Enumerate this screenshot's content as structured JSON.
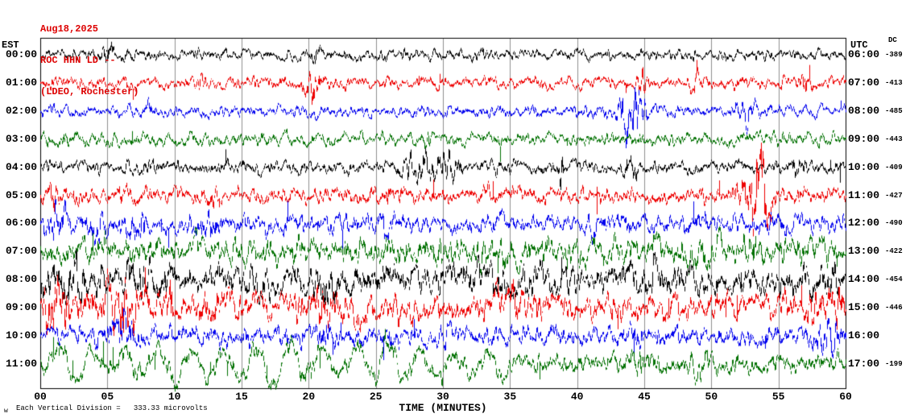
{
  "header": {
    "date": "Aug18,2025",
    "station": "ROC HHN LD --",
    "location": "(LDEO, Rochester)"
  },
  "axes": {
    "left_timezone": "EST",
    "right_timezone": "UTC",
    "dc_column_header": "DC",
    "x_axis_label": "TIME (MINUTES)",
    "x_ticks": [
      "00",
      "05",
      "10",
      "15",
      "20",
      "25",
      "30",
      "35",
      "40",
      "45",
      "50",
      "55",
      "60"
    ]
  },
  "footer": {
    "corner_mark": "w",
    "scale_note": "Each Vertical Division =   333.33 microvolts"
  },
  "colors": {
    "title_red": "#dd0000",
    "grid_gray": "#909090",
    "plot_border": "#000000",
    "background": "#ffffff"
  },
  "chart_data": {
    "type": "line",
    "description": "12-hour helicorder seismogram display, one 60-minute trace per row, colors cycling black/red/blue/green",
    "x_range_minutes": [
      0,
      60
    ],
    "x_tick_interval_minutes": 5,
    "vertical_division_microvolts": 333.33,
    "rows": [
      {
        "est": "00:00",
        "utc": "06:00",
        "dc": "-389",
        "color": "#000000",
        "amp": 4.8,
        "spike_p": 0.0012,
        "spike_a": 6,
        "bursts": [
          {
            "t": 5.0,
            "w": 0.25,
            "a": 10
          },
          {
            "t": 20.5,
            "w": 0.6,
            "a": 4
          },
          {
            "t": 33.0,
            "w": 0.5,
            "a": 3
          }
        ]
      },
      {
        "est": "01:00",
        "utc": "07:00",
        "dc": "-413",
        "color": "#ee0000",
        "amp": 5.0,
        "spike_p": 0.0015,
        "spike_a": 7,
        "bursts": [
          {
            "t": 20.3,
            "w": 0.5,
            "a": 14
          },
          {
            "t": 12.2,
            "w": 0.25,
            "a": 6
          },
          {
            "t": 44.8,
            "w": 0.3,
            "a": 8
          },
          {
            "t": 48.8,
            "w": 0.25,
            "a": 7
          },
          {
            "t": 57.0,
            "w": 0.3,
            "a": 5
          }
        ]
      },
      {
        "est": "02:00",
        "utc": "08:00",
        "dc": "-485",
        "color": "#0000ee",
        "amp": 5.0,
        "spike_p": 0.0015,
        "spike_a": 7,
        "bursts": [
          {
            "t": 44.2,
            "w": 0.55,
            "a": 27
          },
          {
            "t": 43.3,
            "w": 0.3,
            "a": 12
          },
          {
            "t": 52.4,
            "w": 0.5,
            "a": 9
          },
          {
            "t": 8.0,
            "w": 0.3,
            "a": 4
          }
        ]
      },
      {
        "est": "03:00",
        "utc": "09:00",
        "dc": "-443",
        "color": "#007000",
        "amp": 5.3,
        "spike_p": 0.0015,
        "spike_a": 6,
        "bursts": [
          {
            "t": 28.8,
            "w": 0.2,
            "a": 7
          },
          {
            "t": 2.0,
            "w": 0.4,
            "a": 4
          },
          {
            "t": 47.0,
            "w": 0.4,
            "a": 3
          }
        ]
      },
      {
        "est": "04:00",
        "utc": "10:00",
        "dc": "-409",
        "color": "#000000",
        "amp": 5.8,
        "spike_p": 0.002,
        "spike_a": 8,
        "bursts": [
          {
            "t": 28.6,
            "w": 0.9,
            "a": 12
          },
          {
            "t": 30.8,
            "w": 0.5,
            "a": 10
          },
          {
            "t": 38.8,
            "w": 0.15,
            "a": 18
          },
          {
            "t": 44.2,
            "w": 0.2,
            "a": 9
          },
          {
            "t": 56.2,
            "w": 0.3,
            "a": 6
          }
        ]
      },
      {
        "est": "05:00",
        "utc": "11:00",
        "dc": "-427",
        "color": "#ee0000",
        "amp": 6.8,
        "spike_p": 0.003,
        "spike_a": 9,
        "bursts": [
          {
            "t": 53.3,
            "w": 0.7,
            "a": 40
          },
          {
            "t": 0.8,
            "w": 0.5,
            "a": 8
          },
          {
            "t": 6.2,
            "w": 0.3,
            "a": 7
          },
          {
            "t": 12.4,
            "w": 0.3,
            "a": 8
          },
          {
            "t": 26.0,
            "w": 0.2,
            "a": 6
          },
          {
            "t": 33.0,
            "w": 0.2,
            "a": 5
          }
        ]
      },
      {
        "est": "06:00",
        "utc": "12:00",
        "dc": "-490",
        "color": "#0000ee",
        "amp": 8.2,
        "spike_p": 0.004,
        "spike_a": 10,
        "bursts": [
          {
            "t": 1.2,
            "w": 0.5,
            "a": 12
          },
          {
            "t": 4.2,
            "w": 0.4,
            "a": 9
          },
          {
            "t": 7.2,
            "w": 0.5,
            "a": 10
          },
          {
            "t": 12.3,
            "w": 0.6,
            "a": 9
          },
          {
            "t": 25.6,
            "w": 0.2,
            "a": 8
          },
          {
            "t": 41.0,
            "w": 0.3,
            "a": 6
          },
          {
            "t": 55.0,
            "w": 0.5,
            "a": 6
          }
        ]
      },
      {
        "est": "07:00",
        "utc": "13:00",
        "dc": "-422",
        "color": "#007000",
        "amp": 10.5,
        "wander": 3,
        "spike_p": 0.005,
        "spike_a": 9,
        "bursts": [
          {
            "t": 30.0,
            "w": 6.0,
            "a": 2.5
          },
          {
            "t": 50.0,
            "w": 4.0,
            "a": 3
          }
        ]
      },
      {
        "est": "08:00",
        "utc": "14:00",
        "dc": "-454",
        "color": "#000000",
        "amp": 12.0,
        "wander": 7,
        "spike_p": 0.004,
        "spike_a": 10,
        "bursts": [
          {
            "t": 2.0,
            "w": 1.5,
            "a": 9
          },
          {
            "t": 8.0,
            "w": 1.2,
            "a": 8
          },
          {
            "t": 22.0,
            "w": 2.5,
            "a": 5
          },
          {
            "t": 33.0,
            "w": 2.0,
            "a": 4
          },
          {
            "t": 47.0,
            "w": 2.0,
            "a": 4
          },
          {
            "t": 58.0,
            "w": 1.0,
            "a": 6
          }
        ]
      },
      {
        "est": "09:00",
        "utc": "15:00",
        "dc": "-446",
        "color": "#ee0000",
        "amp": 12.0,
        "wander": 5,
        "spike_p": 0.004,
        "spike_a": 10,
        "bursts": [
          {
            "t": 1.0,
            "w": 1.0,
            "a": 12
          },
          {
            "t": 6.5,
            "w": 1.3,
            "a": 11
          },
          {
            "t": 9.7,
            "w": 0.06,
            "a": 60
          },
          {
            "t": 13.0,
            "w": 0.8,
            "a": 8
          },
          {
            "t": 21.0,
            "w": 1.0,
            "a": 7
          },
          {
            "t": 35.0,
            "w": 1.5,
            "a": 5
          },
          {
            "t": 58.5,
            "w": 0.8,
            "a": 10
          }
        ]
      },
      {
        "est": "10:00",
        "utc": "16:00",
        "dc": "",
        "color": "#0000ee",
        "amp": 8.5,
        "spike_p": 0.004,
        "spike_a": 9,
        "bursts": [
          {
            "t": 6.0,
            "w": 1.0,
            "a": 8
          },
          {
            "t": 21.3,
            "w": 0.3,
            "a": 10
          },
          {
            "t": 30.0,
            "w": 0.3,
            "a": 6
          },
          {
            "t": 44.0,
            "w": 0.3,
            "a": 7
          },
          {
            "t": 58.6,
            "w": 0.8,
            "a": 12
          }
        ]
      },
      {
        "est": "11:00",
        "utc": "17:00",
        "dc": "-199",
        "color": "#007000",
        "amp": 8.5,
        "spike_p": 0.004,
        "spike_a": 9,
        "osc": {
          "period": 2.45,
          "amp": 22,
          "from": 0.8,
          "to": 32
        },
        "bursts": [
          {
            "t": 20.0,
            "w": 0.3,
            "a": 9
          },
          {
            "t": 44.5,
            "w": 0.5,
            "a": 7
          },
          {
            "t": 49.0,
            "w": 0.5,
            "a": 6
          }
        ]
      }
    ]
  }
}
